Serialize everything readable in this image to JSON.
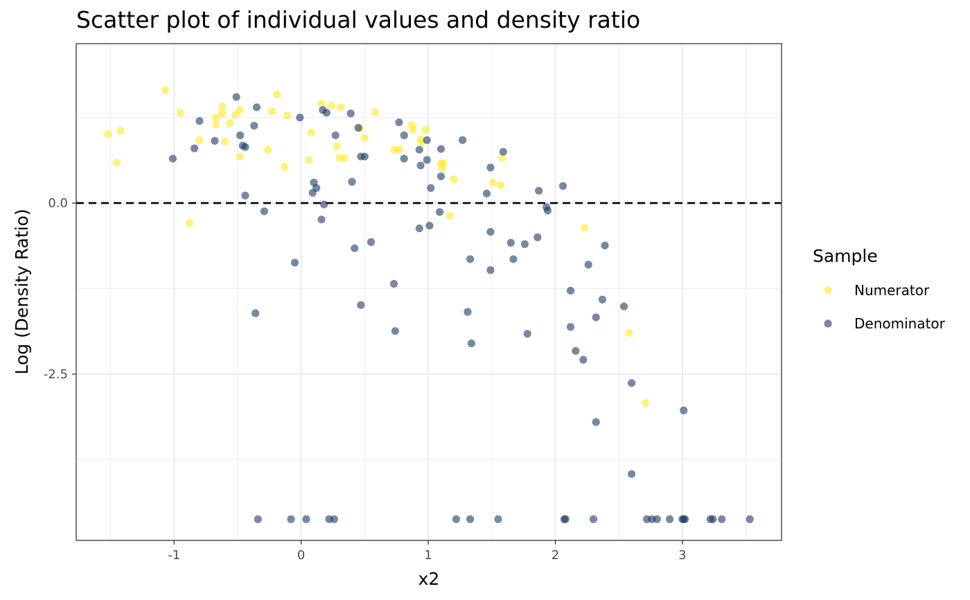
{
  "chart_data": {
    "type": "scatter",
    "title": "Scatter plot of individual values and density ratio",
    "xlabel": "x2",
    "ylabel": "Log (Density Ratio)",
    "xlim": [
      -1.77,
      3.78
    ],
    "ylim": [
      -4.93,
      2.33
    ],
    "x_ticks": [
      -1,
      0,
      1,
      2,
      3
    ],
    "x_tick_labels": [
      "-1",
      "0",
      "1",
      "2",
      "3"
    ],
    "y_ticks": [
      0,
      -2.5
    ],
    "y_tick_labels": [
      "0.0",
      "-2.5"
    ],
    "reference_line": {
      "y": 0,
      "style": "dashed",
      "color": "#000000"
    },
    "grid": true,
    "legend": {
      "title": "Sample",
      "position": "right"
    },
    "series": [
      {
        "name": "Numerator",
        "color": "#fde725",
        "points": [
          [
            -1.52,
            1.01
          ],
          [
            -1.42,
            1.06
          ],
          [
            -1.45,
            0.59
          ],
          [
            -1.07,
            1.65
          ],
          [
            -0.95,
            1.32
          ],
          [
            -0.88,
            -0.29
          ],
          [
            -0.8,
            0.92
          ],
          [
            -0.67,
            1.25
          ],
          [
            -0.67,
            1.15
          ],
          [
            -0.62,
            1.41
          ],
          [
            -0.62,
            1.31
          ],
          [
            -0.6,
            0.9
          ],
          [
            -0.56,
            1.17
          ],
          [
            -0.52,
            1.29
          ],
          [
            -0.48,
            1.36
          ],
          [
            -0.48,
            0.68
          ],
          [
            -0.26,
            0.78
          ],
          [
            -0.23,
            1.34
          ],
          [
            -0.19,
            1.59
          ],
          [
            -0.13,
            0.53
          ],
          [
            -0.11,
            1.28
          ],
          [
            0.06,
            0.63
          ],
          [
            0.08,
            1.03
          ],
          [
            0.16,
            1.45
          ],
          [
            0.24,
            1.43
          ],
          [
            0.28,
            0.83
          ],
          [
            0.3,
            0.66
          ],
          [
            0.31,
            1.4
          ],
          [
            0.34,
            0.66
          ],
          [
            0.46,
            1.09
          ],
          [
            0.5,
            0.95
          ],
          [
            0.58,
            1.33
          ],
          [
            0.73,
            0.78
          ],
          [
            0.77,
            0.78
          ],
          [
            0.87,
            1.14
          ],
          [
            0.88,
            1.07
          ],
          [
            0.94,
            0.93
          ],
          [
            0.95,
            0.89
          ],
          [
            0.98,
            1.07
          ],
          [
            1.1,
            0.58
          ],
          [
            1.11,
            0.51
          ],
          [
            1.12,
            0.58
          ],
          [
            1.17,
            -0.19
          ],
          [
            1.2,
            0.35
          ],
          [
            1.51,
            0.3
          ],
          [
            1.57,
            0.26
          ],
          [
            1.58,
            0.66
          ],
          [
            2.23,
            -0.36
          ],
          [
            2.58,
            -1.9
          ],
          [
            2.71,
            -2.92
          ]
        ]
      },
      {
        "name": "Denominator",
        "color": "#1b3a63",
        "points": [
          [
            -1.01,
            0.65
          ],
          [
            -0.84,
            0.8
          ],
          [
            -0.8,
            1.2
          ],
          [
            -0.68,
            0.91
          ],
          [
            -0.51,
            1.55
          ],
          [
            -0.48,
            0.99
          ],
          [
            -0.46,
            0.84
          ],
          [
            -0.44,
            0.82
          ],
          [
            -0.44,
            0.11
          ],
          [
            -0.37,
            1.13
          ],
          [
            -0.35,
            1.4
          ],
          [
            -0.36,
            -1.61
          ],
          [
            -0.29,
            -0.12
          ],
          [
            -0.05,
            -0.87
          ],
          [
            -0.01,
            1.25
          ],
          [
            0.09,
            0.15
          ],
          [
            0.1,
            0.3
          ],
          [
            0.12,
            0.22
          ],
          [
            0.16,
            -0.24
          ],
          [
            0.17,
            1.36
          ],
          [
            0.18,
            -0.02
          ],
          [
            0.2,
            1.32
          ],
          [
            0.27,
            0.99
          ],
          [
            0.39,
            1.31
          ],
          [
            0.4,
            0.31
          ],
          [
            0.42,
            -0.66
          ],
          [
            0.45,
            1.1
          ],
          [
            0.47,
            0.68
          ],
          [
            0.47,
            -1.49
          ],
          [
            0.5,
            0.68
          ],
          [
            0.55,
            -0.57
          ],
          [
            0.73,
            -1.18
          ],
          [
            0.74,
            -1.87
          ],
          [
            0.77,
            1.18
          ],
          [
            0.81,
            0.65
          ],
          [
            0.81,
            0.99
          ],
          [
            0.93,
            0.78
          ],
          [
            0.93,
            -0.37
          ],
          [
            0.94,
            0.55
          ],
          [
            0.99,
            0.92
          ],
          [
            0.99,
            0.63
          ],
          [
            1.01,
            -0.33
          ],
          [
            1.02,
            0.22
          ],
          [
            1.09,
            -0.13
          ],
          [
            1.1,
            0.79
          ],
          [
            1.1,
            0.39
          ],
          [
            1.27,
            0.92
          ],
          [
            1.31,
            -1.59
          ],
          [
            1.33,
            -0.82
          ],
          [
            1.34,
            -2.05
          ],
          [
            1.46,
            0.14
          ],
          [
            1.49,
            0.52
          ],
          [
            1.49,
            -0.42
          ],
          [
            1.49,
            -0.98
          ],
          [
            1.59,
            0.75
          ],
          [
            1.65,
            -0.58
          ],
          [
            1.67,
            -0.82
          ],
          [
            1.76,
            -0.6
          ],
          [
            1.78,
            -1.91
          ],
          [
            1.86,
            -0.5
          ],
          [
            1.87,
            0.18
          ],
          [
            1.93,
            -0.06
          ],
          [
            1.94,
            -0.11
          ],
          [
            2.06,
            0.25
          ],
          [
            2.12,
            -1.28
          ],
          [
            2.12,
            -1.81
          ],
          [
            2.16,
            -2.16
          ],
          [
            2.22,
            -2.29
          ],
          [
            2.26,
            -0.9
          ],
          [
            2.32,
            -1.67
          ],
          [
            2.32,
            -3.2
          ],
          [
            2.37,
            -1.41
          ],
          [
            2.39,
            -0.62
          ],
          [
            2.54,
            -1.51
          ],
          [
            2.6,
            -2.63
          ],
          [
            2.6,
            -3.96
          ],
          [
            3.01,
            -3.03
          ],
          [
            -0.34,
            -4.62
          ],
          [
            -0.08,
            -4.62
          ],
          [
            0.04,
            -4.62
          ],
          [
            0.22,
            -4.62
          ],
          [
            0.26,
            -4.62
          ],
          [
            1.22,
            -4.62
          ],
          [
            1.33,
            -4.62
          ],
          [
            1.55,
            -4.62
          ],
          [
            2.07,
            -4.62
          ],
          [
            2.08,
            -4.62
          ],
          [
            2.3,
            -4.62
          ],
          [
            2.72,
            -4.62
          ],
          [
            2.76,
            -4.62
          ],
          [
            2.8,
            -4.62
          ],
          [
            2.9,
            -4.62
          ],
          [
            3.0,
            -4.62
          ],
          [
            3.01,
            -4.62
          ],
          [
            3.02,
            -4.62
          ],
          [
            3.22,
            -4.62
          ],
          [
            3.24,
            -4.62
          ],
          [
            3.31,
            -4.62
          ],
          [
            3.53,
            -4.62
          ]
        ]
      }
    ]
  }
}
